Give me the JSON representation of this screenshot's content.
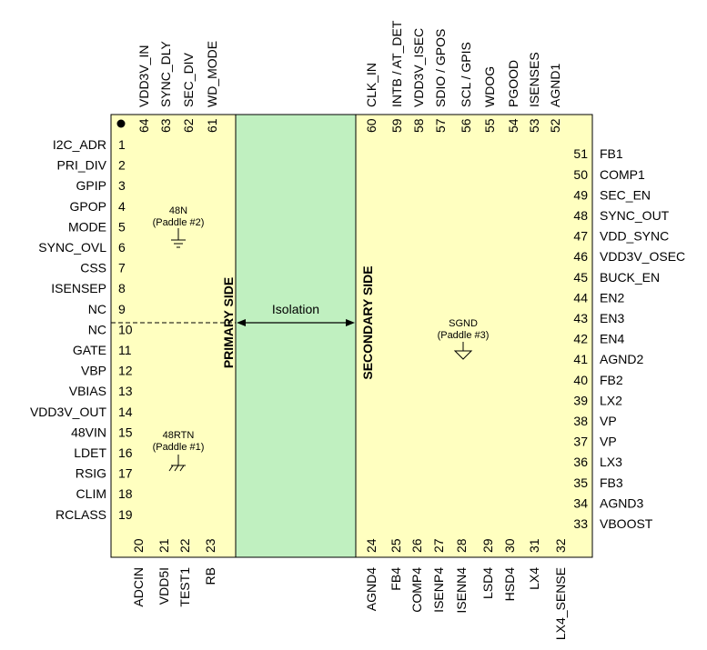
{
  "pins": [
    {
      "num": "1",
      "name": "I2C_ADR"
    },
    {
      "num": "2",
      "name": "PRI_DIV"
    },
    {
      "num": "3",
      "name": "GPIP"
    },
    {
      "num": "4",
      "name": "GPOP"
    },
    {
      "num": "5",
      "name": "MODE"
    },
    {
      "num": "6",
      "name": "SYNC_OVL"
    },
    {
      "num": "7",
      "name": "CSS"
    },
    {
      "num": "8",
      "name": "ISENSEP"
    },
    {
      "num": "9",
      "name": "NC"
    },
    {
      "num": "10",
      "name": "NC"
    },
    {
      "num": "11",
      "name": "GATE"
    },
    {
      "num": "12",
      "name": "VBP"
    },
    {
      "num": "13",
      "name": "VBIAS"
    },
    {
      "num": "14",
      "name": "VDD3V_OUT"
    },
    {
      "num": "15",
      "name": "48VIN"
    },
    {
      "num": "16",
      "name": "LDET"
    },
    {
      "num": "17",
      "name": "RSIG"
    },
    {
      "num": "18",
      "name": "CLIM"
    },
    {
      "num": "19",
      "name": "RCLASS"
    },
    {
      "num": "20",
      "name": "ADCIN"
    },
    {
      "num": "21",
      "name": "VDD5I"
    },
    {
      "num": "22",
      "name": "TEST1"
    },
    {
      "num": "23",
      "name": "RB"
    },
    {
      "num": "24",
      "name": "AGND4"
    },
    {
      "num": "25",
      "name": "FB4"
    },
    {
      "num": "26",
      "name": "COMP4"
    },
    {
      "num": "27",
      "name": "ISENP4"
    },
    {
      "num": "28",
      "name": "ISENN4"
    },
    {
      "num": "29",
      "name": "LSD4"
    },
    {
      "num": "30",
      "name": "HSD4"
    },
    {
      "num": "31",
      "name": "LX4"
    },
    {
      "num": "32",
      "name": "LX4_SENSE"
    },
    {
      "num": "33",
      "name": "VBOOST"
    },
    {
      "num": "34",
      "name": "AGND3"
    },
    {
      "num": "35",
      "name": "FB3"
    },
    {
      "num": "36",
      "name": "LX3"
    },
    {
      "num": "37",
      "name": "VP"
    },
    {
      "num": "38",
      "name": "VP"
    },
    {
      "num": "39",
      "name": "LX2"
    },
    {
      "num": "40",
      "name": "FB2"
    },
    {
      "num": "41",
      "name": "AGND2"
    },
    {
      "num": "42",
      "name": "EN4"
    },
    {
      "num": "43",
      "name": "EN3"
    },
    {
      "num": "44",
      "name": "EN2"
    },
    {
      "num": "45",
      "name": "BUCK_EN"
    },
    {
      "num": "46",
      "name": "VDD3V_OSEC"
    },
    {
      "num": "47",
      "name": "VDD_SYNC"
    },
    {
      "num": "48",
      "name": "SYNC_OUT"
    },
    {
      "num": "49",
      "name": "SEC_EN"
    },
    {
      "num": "50",
      "name": "COMP1"
    },
    {
      "num": "51",
      "name": "FB1"
    },
    {
      "num": "52",
      "name": "AGND1"
    },
    {
      "num": "53",
      "name": "ISENSES"
    },
    {
      "num": "54",
      "name": "PGOOD"
    },
    {
      "num": "55",
      "name": "WDOG"
    },
    {
      "num": "56",
      "name": "SCL / GPIS"
    },
    {
      "num": "57",
      "name": "SDIO / GPOS"
    },
    {
      "num": "58",
      "name": "VDD3V_ISEC"
    },
    {
      "num": "59",
      "name": "INTB / AT_DET"
    },
    {
      "num": "60",
      "name": "CLK_IN"
    },
    {
      "num": "61",
      "name": "WD_MODE"
    },
    {
      "num": "62",
      "name": "SEC_DIV"
    },
    {
      "num": "63",
      "name": "SYNC_DLY"
    },
    {
      "num": "64",
      "name": "VDD3V_IN"
    }
  ],
  "regions": {
    "primary_label": "PRIMARY SIDE",
    "secondary_label": "SECONDARY SIDE",
    "isolation_label": "Isolation"
  },
  "paddles": {
    "p2_net": "48N",
    "p2_label": "(Paddle #2)",
    "p1_net": "48RTN",
    "p1_label": "(Paddle #1)",
    "p3_net": "SGND",
    "p3_label": "(Paddle #3)"
  },
  "colors": {
    "body_fill": "#ffffc0",
    "isolation_fill": "#c0f0c0",
    "outline": "#000000"
  }
}
